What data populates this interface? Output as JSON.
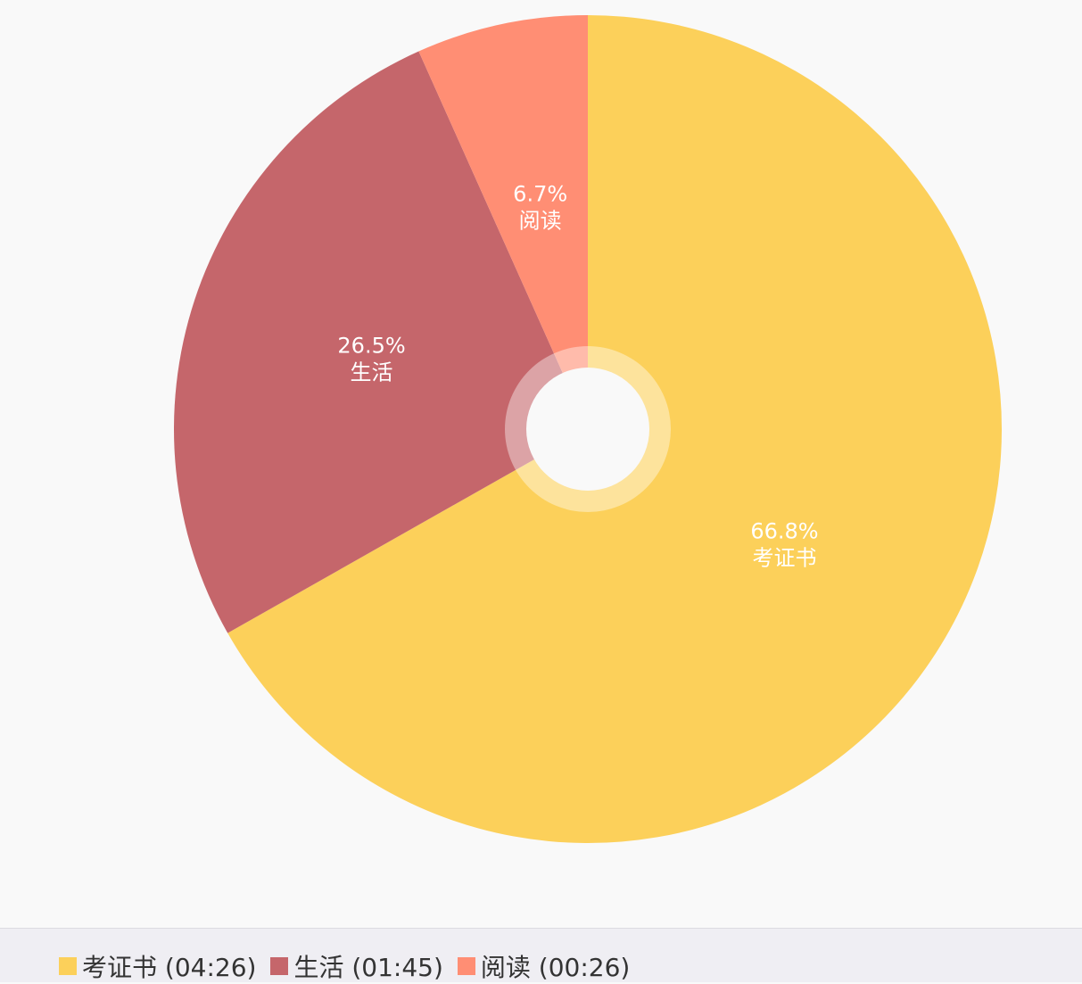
{
  "chart_data": {
    "type": "pie",
    "slices": [
      {
        "label": "考证书",
        "percent": 66.8,
        "percent_label": "66.8%",
        "duration": "04:26",
        "color": "#fcd05a"
      },
      {
        "label": "生活",
        "percent": 26.5,
        "percent_label": "26.5%",
        "duration": "01:45",
        "color": "#c5666b"
      },
      {
        "label": "阅读",
        "percent": 6.7,
        "percent_label": "6.7%",
        "duration": "00:26",
        "color": "#ff8e74"
      }
    ],
    "legend_position": "bottom-left",
    "donut_hole": true
  },
  "legend": {
    "items": [
      {
        "text": "考证书 (04:26)",
        "color": "#fcd05a"
      },
      {
        "text": "生活 (01:45)",
        "color": "#c5666b"
      },
      {
        "text": "阅读 (00:26)",
        "color": "#ff8e74"
      }
    ]
  },
  "colors": {
    "background": "#f9f9f9",
    "legend_background": "#efeef3",
    "label_text": "#ffffff"
  }
}
